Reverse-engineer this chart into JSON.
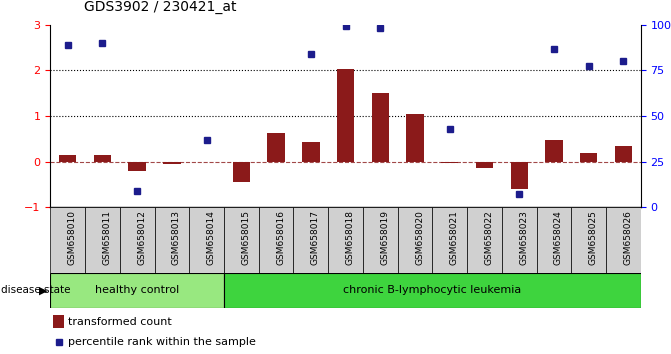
{
  "title": "GDS3902 / 230421_at",
  "samples": [
    "GSM658010",
    "GSM658011",
    "GSM658012",
    "GSM658013",
    "GSM658014",
    "GSM658015",
    "GSM658016",
    "GSM658017",
    "GSM658018",
    "GSM658019",
    "GSM658020",
    "GSM658021",
    "GSM658022",
    "GSM658023",
    "GSM658024",
    "GSM658025",
    "GSM658026"
  ],
  "red_bars": [
    0.15,
    0.15,
    -0.2,
    -0.05,
    -0.02,
    -0.45,
    0.62,
    0.42,
    2.02,
    1.5,
    1.05,
    -0.03,
    -0.15,
    -0.6,
    0.48,
    0.18,
    0.35
  ],
  "blue_dots": [
    2.55,
    2.6,
    -0.65,
    null,
    0.47,
    null,
    null,
    2.35,
    2.97,
    2.92,
    null,
    0.72,
    null,
    -0.72,
    2.47,
    2.1,
    2.2
  ],
  "healthy_control_count": 5,
  "group1_label": "healthy control",
  "group2_label": "chronic B-lymphocytic leukemia",
  "disease_state_label": "disease state",
  "legend_red": "transformed count",
  "legend_blue": "percentile rank within the sample",
  "ylim_left": [
    -1,
    3
  ],
  "ylim_right": [
    0,
    100
  ],
  "yticks_left": [
    -1,
    0,
    1,
    2,
    3
  ],
  "ytick_labels_right": [
    "0",
    "25",
    "50",
    "75",
    "100%"
  ],
  "hline_y": [
    1.0,
    2.0
  ],
  "bar_color": "#8B1A1A",
  "dot_color": "#1C1C8C",
  "group1_color": "#98E880",
  "group2_color": "#3ED43E",
  "label_bg_color": "#D0D0D0",
  "bg_color": "#FFFFFF",
  "bar_width": 0.5
}
